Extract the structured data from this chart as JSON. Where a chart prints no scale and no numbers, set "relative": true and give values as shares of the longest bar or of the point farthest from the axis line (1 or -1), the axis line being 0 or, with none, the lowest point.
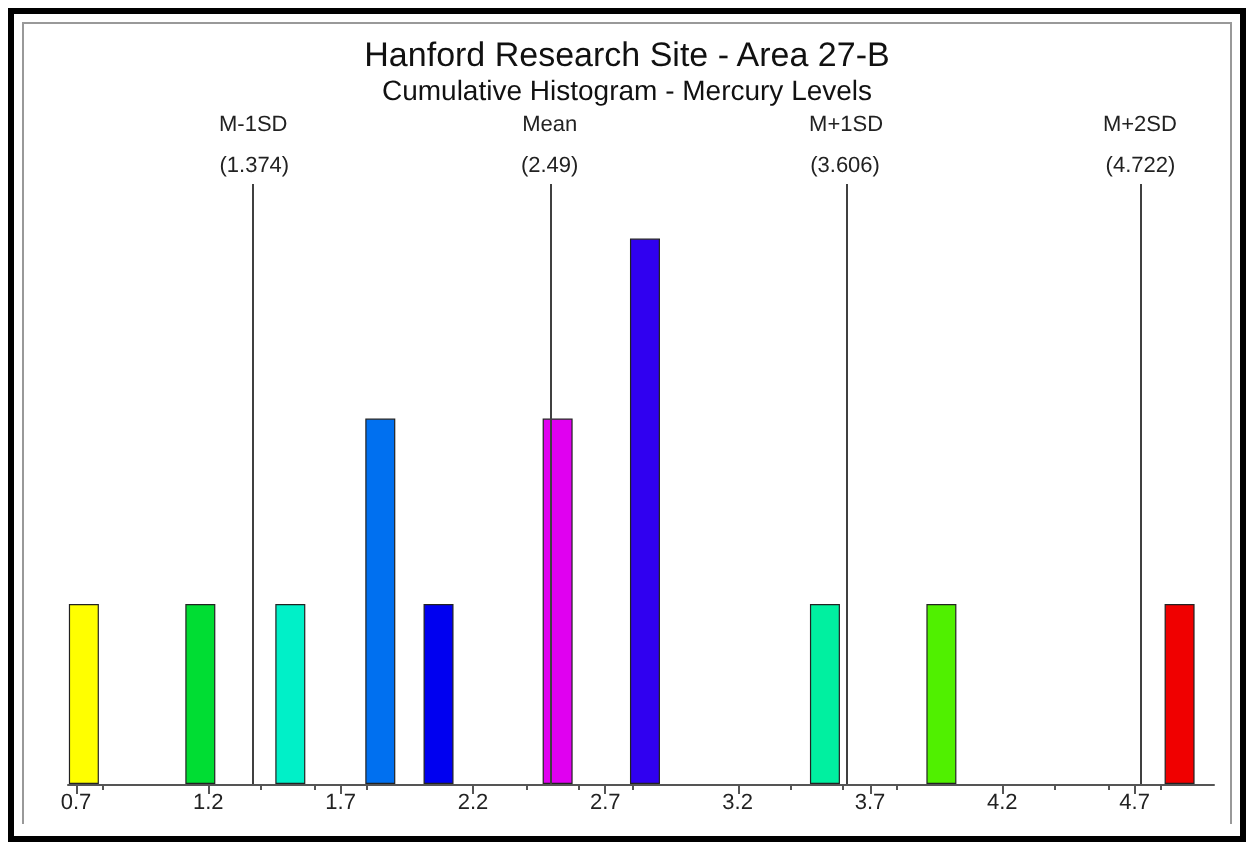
{
  "chart_data": {
    "type": "bar",
    "title": "Hanford Research Site - Area 27-B",
    "subtitle": "Cumulative Histogram - Mercury Levels",
    "relative": true,
    "x": [
      0.73,
      1.17,
      1.51,
      1.85,
      2.07,
      2.52,
      2.85,
      3.53,
      3.97,
      4.87
    ],
    "values": [
      0.33,
      0.33,
      0.33,
      0.67,
      0.33,
      0.67,
      1,
      0.33,
      0.33,
      0.33
    ],
    "colors": [
      "#ffff00",
      "#00dd33",
      "#00f0c8",
      "#0070f0",
      "#0000f0",
      "#e000f0",
      "#3000f0",
      "#00f0a0",
      "#50f000",
      "#f00000"
    ],
    "xlim": [
      0.67,
      5.0
    ],
    "xticks": [
      0.7,
      1.2,
      1.7,
      2.2,
      2.7,
      3.2,
      3.7,
      4.2,
      4.7
    ],
    "ref_lines": [
      {
        "axis": "x",
        "value": 1.374,
        "label": "M-1SD",
        "color": "#404040"
      },
      {
        "axis": "x",
        "value": 2.49,
        "label": "Mean",
        "color": "#404040"
      },
      {
        "axis": "x",
        "value": 3.606,
        "label": "M+1SD",
        "color": "#404040"
      },
      {
        "axis": "x",
        "value": 4.722,
        "label": "M+2SD",
        "color": "#404040"
      }
    ],
    "annotations": [
      "(1.374)",
      "(2.49)",
      "(3.606)",
      "(4.722)"
    ],
    "grid": false
  }
}
